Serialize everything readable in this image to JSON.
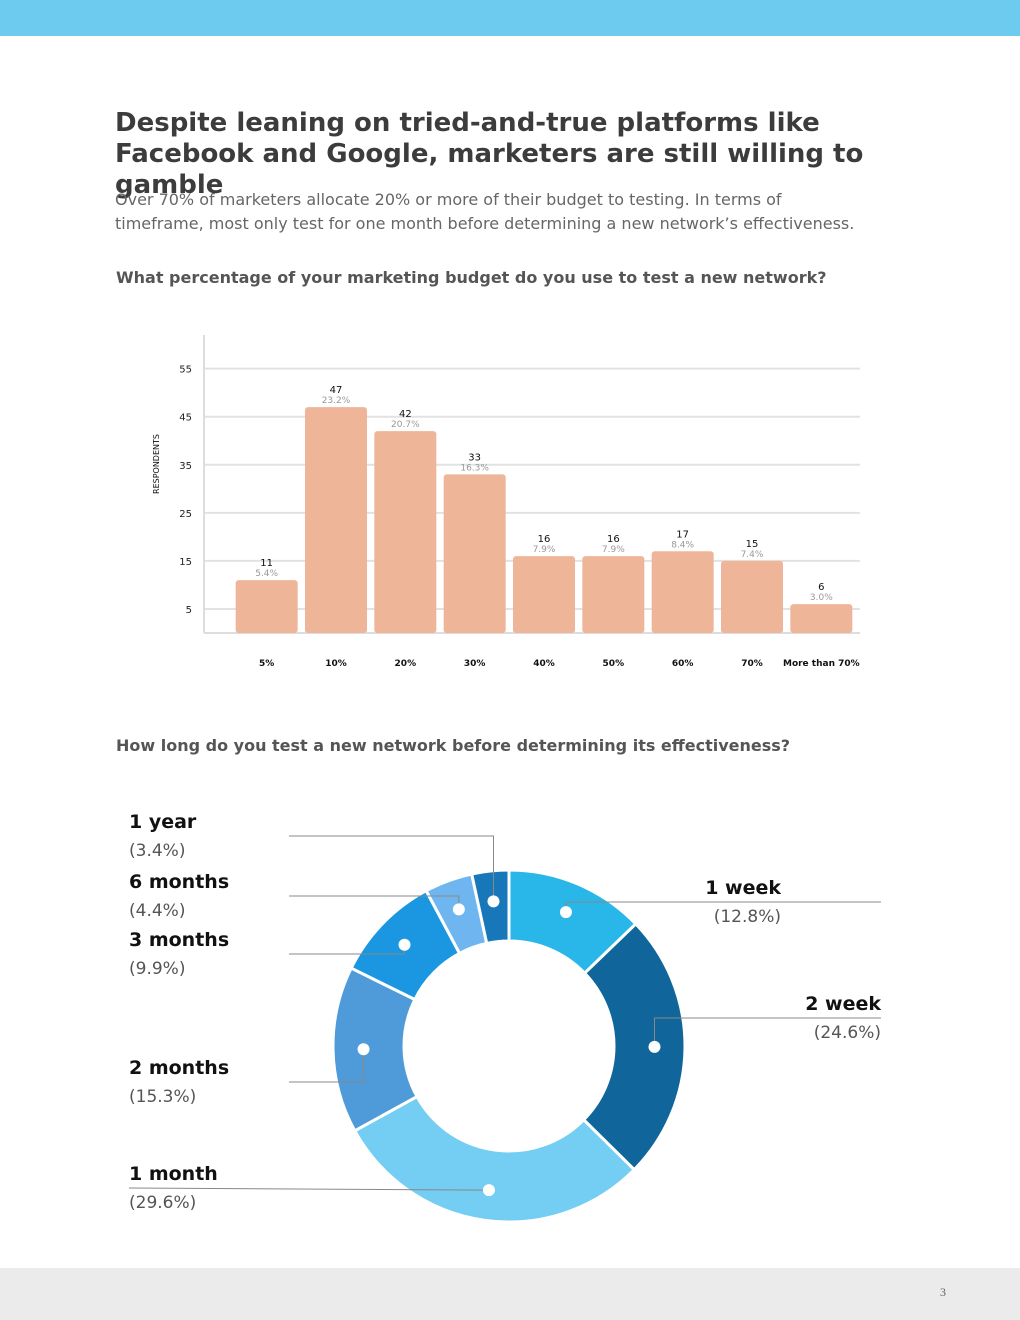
{
  "header": {
    "title": "Despite leaning on tried-and-true platforms like Facebook and Google, marketers are still willing to gamble",
    "intro": "Over 70% of marketers allocate 20% or more of their budget to testing. In terms of timeframe, most only test for one month before determining a new network’s effectiveness."
  },
  "chart_data": [
    {
      "type": "bar",
      "title": "What percentage of your marketing budget do you use to test a new network?",
      "y_label": "RESPONDENTS",
      "categories": [
        "5%",
        "10%",
        "20%",
        "30%",
        "40%",
        "50%",
        "60%",
        "70%",
        "More than 70%"
      ],
      "values": [
        11,
        47,
        42,
        33,
        16,
        16,
        17,
        15,
        6
      ],
      "percent_labels": [
        "5.4%",
        "23.2%",
        "20.7%",
        "16.3%",
        "7.9%",
        "7.9%",
        "8.4%",
        "7.4%",
        "3.0%"
      ],
      "color": "#eeb598",
      "ylim": [
        0,
        62
      ],
      "yticks": [
        5,
        15,
        25,
        35,
        45,
        55
      ],
      "grid": true
    },
    {
      "type": "pie",
      "donut": true,
      "title": "How long do you test a new network before determining its effectiveness?",
      "categories": [
        "1 week",
        "2 week",
        "1 month",
        "2 months",
        "3 months",
        "6 months",
        "1 year"
      ],
      "values": [
        12.8,
        24.6,
        29.6,
        15.3,
        9.9,
        4.4,
        3.4
      ],
      "value_labels": [
        "(12.8%)",
        "(24.6%)",
        "(29.6%)",
        "(15.3%)",
        "(9.9%)",
        "(4.4%)",
        "(3.4%)"
      ],
      "colors": [
        "#29b6e8",
        "#10669b",
        "#74cdf2",
        "#4f9ad9",
        "#1a97e0",
        "#6fb6f0",
        "#1877b9"
      ]
    }
  ],
  "footer": {
    "page_number": "3"
  }
}
